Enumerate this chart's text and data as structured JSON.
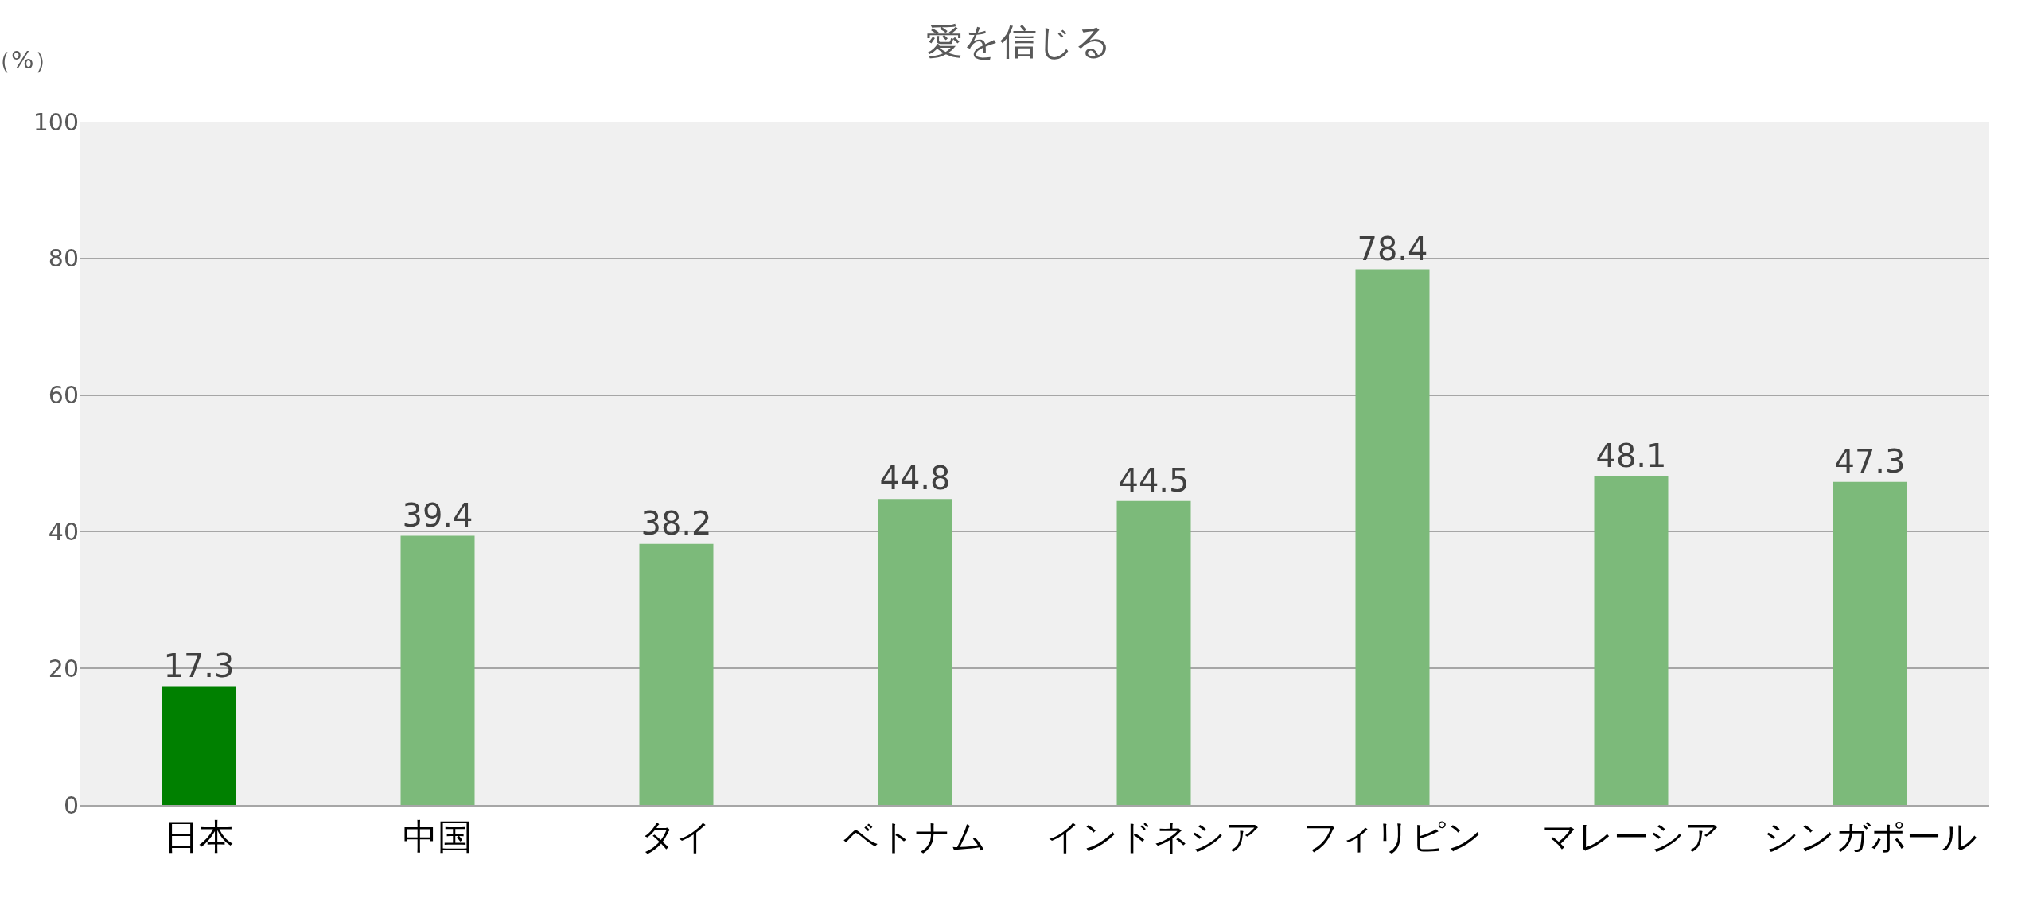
{
  "chart_data": {
    "type": "bar",
    "title": "愛を信じる",
    "ylabel": "（%）",
    "categories": [
      "日本",
      "中国",
      "タイ",
      "ベトナム",
      "インドネシア",
      "フィリピン",
      "マレーシア",
      "シンガポール"
    ],
    "values": [
      17.3,
      39.4,
      38.2,
      44.8,
      44.5,
      78.4,
      48.1,
      47.3
    ],
    "colors": [
      "#008000",
      "#7cba7a",
      "#7cba7a",
      "#7cba7a",
      "#7cba7a",
      "#7cba7a",
      "#7cba7a",
      "#7cba7a"
    ],
    "data_labels": true,
    "ylim": [
      0,
      100
    ],
    "yticks": [
      0,
      20,
      40,
      60,
      80,
      100
    ],
    "grid": "y",
    "legend": false
  }
}
